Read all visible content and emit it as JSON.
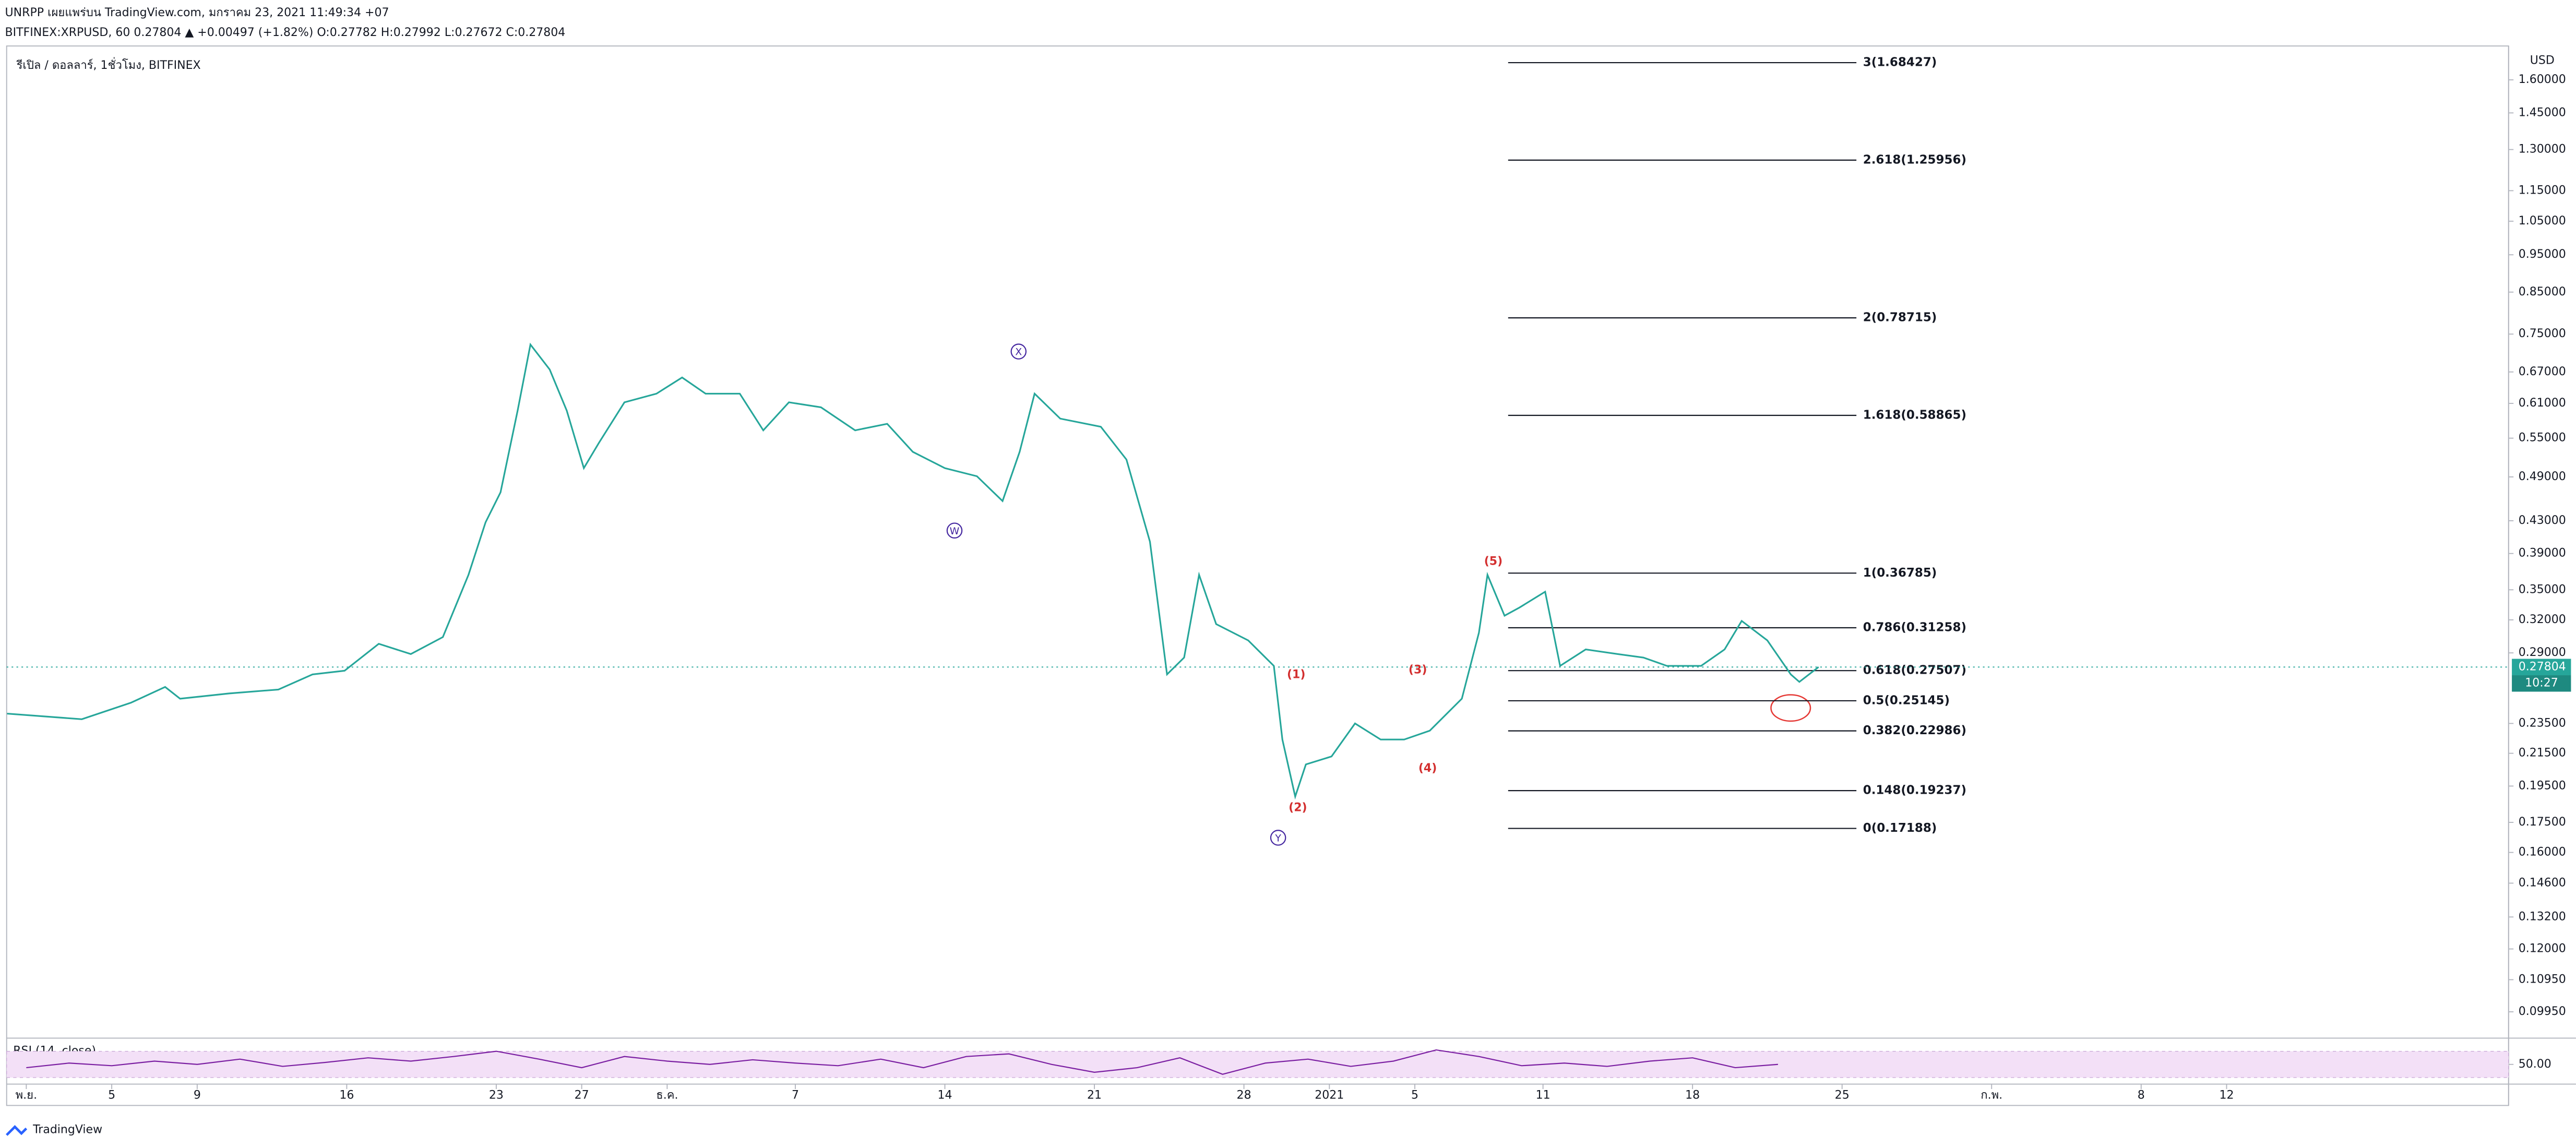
{
  "header": {
    "line1": "UNRPP เผยแพร่บน TradingView.com, มกราคม 23, 2021 11:49:34 +07",
    "line2": "BITFINEX:XRPUSD, 60 0.27804 ▲ +0.00497 (+1.82%) O:0.27782 H:0.27992 L:0.27672 C:0.27804"
  },
  "brand": "TradingView",
  "chart_data": {
    "type": "line",
    "title": "รีเปิล / ดอลลาร์, 1ชั่วโมง, BITFINEX",
    "y_unit": "USD",
    "color": "#26a69a",
    "log_scale": true,
    "grid": false,
    "x": [
      -0.9,
      2.6,
      4.9,
      6.5,
      7.2,
      9.5,
      11.8,
      13.4,
      14.9,
      16.5,
      18,
      19.5,
      20.7,
      21.5,
      22.2,
      23,
      23.6,
      24.5,
      25.3,
      26.1,
      26.8,
      28,
      29.5,
      30.7,
      31.8,
      33.4,
      34.5,
      35.7,
      37.2,
      38.8,
      40.3,
      41.5,
      43,
      44.5,
      45.7,
      46.5,
      47.2,
      48.4,
      50.3,
      51.5,
      52.6,
      53.4,
      54.2,
      54.9,
      55.7,
      57.2,
      58.4,
      58.8,
      59.4,
      59.9,
      61.1,
      62.2,
      63.4,
      64.5,
      65.7,
      67.2,
      68,
      68.4,
      69.2,
      69.9,
      71.1,
      71.8,
      73,
      74.5,
      75.7,
      76.8,
      78.4,
      79.5,
      80.3,
      81.5,
      82.6,
      83,
      83.9
    ],
    "values": [
      0.242,
      0.238,
      0.25,
      0.262,
      0.253,
      0.257,
      0.26,
      0.272,
      0.275,
      0.298,
      0.289,
      0.304,
      0.366,
      0.428,
      0.468,
      0.597,
      0.727,
      0.675,
      0.597,
      0.503,
      0.542,
      0.612,
      0.628,
      0.659,
      0.628,
      0.628,
      0.563,
      0.612,
      0.603,
      0.563,
      0.574,
      0.528,
      0.503,
      0.491,
      0.456,
      0.528,
      0.628,
      0.583,
      0.569,
      0.516,
      0.404,
      0.272,
      0.286,
      0.366,
      0.316,
      0.301,
      0.279,
      0.224,
      0.189,
      0.208,
      0.213,
      0.235,
      0.224,
      0.224,
      0.23,
      0.253,
      0.308,
      0.366,
      0.324,
      0.332,
      0.348,
      0.279,
      0.293,
      0.289,
      0.286,
      0.279,
      0.279,
      0.293,
      0.319,
      0.301,
      0.272,
      0.266,
      0.27804
    ],
    "countdown": "10:27",
    "xlim": [
      -0.92,
      116.2
    ],
    "xticks": [
      {
        "value": 0,
        "label": "พ.ย."
      },
      {
        "value": 4,
        "label": "5"
      },
      {
        "value": 8,
        "label": "9"
      },
      {
        "value": 15,
        "label": "16"
      },
      {
        "value": 22,
        "label": "23"
      },
      {
        "value": 26,
        "label": "27"
      },
      {
        "value": 30,
        "label": "ธ.ค."
      },
      {
        "value": 36,
        "label": "7"
      },
      {
        "value": 43,
        "label": "14"
      },
      {
        "value": 50,
        "label": "21"
      },
      {
        "value": 57,
        "label": "28"
      },
      {
        "value": 61,
        "label": "2021"
      },
      {
        "value": 65,
        "label": "5"
      },
      {
        "value": 71,
        "label": "11"
      },
      {
        "value": 78,
        "label": "18"
      },
      {
        "value": 85,
        "label": "25"
      },
      {
        "value": 92,
        "label": "ก.พ."
      },
      {
        "value": 99,
        "label": "8"
      },
      {
        "value": 103,
        "label": "12"
      }
    ],
    "ylim": [
      0.092,
      1.77
    ],
    "yticks": [
      {
        "value": 1.6,
        "label": "1.60000"
      },
      {
        "value": 1.45,
        "label": "1.45000"
      },
      {
        "value": 1.3,
        "label": "1.30000"
      },
      {
        "value": 1.15,
        "label": "1.15000"
      },
      {
        "value": 1.05,
        "label": "1.05000"
      },
      {
        "value": 0.95,
        "label": "0.95000"
      },
      {
        "value": 0.85,
        "label": "0.85000"
      },
      {
        "value": 0.75,
        "label": "0.75000"
      },
      {
        "value": 0.67,
        "label": "0.67000"
      },
      {
        "value": 0.61,
        "label": "0.61000"
      },
      {
        "value": 0.55,
        "label": "0.55000"
      },
      {
        "value": 0.49,
        "label": "0.49000"
      },
      {
        "value": 0.43,
        "label": "0.43000"
      },
      {
        "value": 0.39,
        "label": "0.39000"
      },
      {
        "value": 0.35,
        "label": "0.35000"
      },
      {
        "value": 0.32,
        "label": "0.32000"
      },
      {
        "value": 0.29,
        "label": "0.29000"
      },
      {
        "value": 0.235,
        "label": "0.23500"
      },
      {
        "value": 0.215,
        "label": "0.21500"
      },
      {
        "value": 0.195,
        "label": "0.19500"
      },
      {
        "value": 0.175,
        "label": "0.17500"
      },
      {
        "value": 0.16,
        "label": "0.16000"
      },
      {
        "value": 0.146,
        "label": "0.14600"
      },
      {
        "value": 0.132,
        "label": "0.13200"
      },
      {
        "value": 0.12,
        "label": "0.12000"
      },
      {
        "value": 0.1095,
        "label": "0.10950"
      },
      {
        "value": 0.0995,
        "label": "0.09950"
      }
    ],
    "fib_levels": [
      {
        "value": 1.68427,
        "label": "3(1.68427)"
      },
      {
        "value": 1.25956,
        "label": "2.618(1.25956)"
      },
      {
        "value": 0.78715,
        "label": "2(0.78715)"
      },
      {
        "value": 0.58865,
        "label": "1.618(0.58865)"
      },
      {
        "value": 0.36785,
        "label": "1(0.36785)"
      },
      {
        "value": 0.31258,
        "label": "0.786(0.31258)"
      },
      {
        "value": 0.27507,
        "label": "0.618(0.27507)"
      },
      {
        "value": 0.25145,
        "label": "0.5(0.25145)"
      },
      {
        "value": 0.22986,
        "label": "0.382(0.22986)"
      },
      {
        "value": 0.19237,
        "label": "0.148(0.19237)"
      },
      {
        "value": 0.17188,
        "label": "0(0.17188)"
      }
    ],
    "wave_labels": [
      "(1)",
      "(2)",
      "(3)",
      "(4)",
      "(5)"
    ],
    "cycle_labels": [
      "W",
      "X",
      "Y"
    ],
    "rsi": {
      "name": "RSI (14, close)",
      "color": "#7b1fa2",
      "ylim": [
        20,
        90
      ],
      "band": [
        30,
        70
      ],
      "yticks": [
        {
          "value": 50,
          "label": "50.00"
        }
      ],
      "x": [
        0,
        2,
        4,
        6,
        8,
        10,
        12,
        14,
        16,
        18,
        20,
        22,
        24,
        26,
        28,
        30,
        32,
        34,
        36,
        38,
        40,
        42,
        44,
        46,
        48,
        50,
        52,
        54,
        56,
        58,
        60,
        62,
        64,
        66,
        68,
        70,
        72,
        74,
        76,
        78,
        80,
        82
      ],
      "values": [
        45,
        52,
        48,
        55,
        50,
        58,
        47,
        53,
        60,
        55,
        62,
        70,
        58,
        45,
        62,
        55,
        50,
        57,
        52,
        48,
        58,
        45,
        62,
        66,
        50,
        38,
        45,
        60,
        35,
        52,
        58,
        47,
        55,
        72,
        62,
        48,
        52,
        47,
        55,
        60,
        45,
        50
      ]
    }
  }
}
